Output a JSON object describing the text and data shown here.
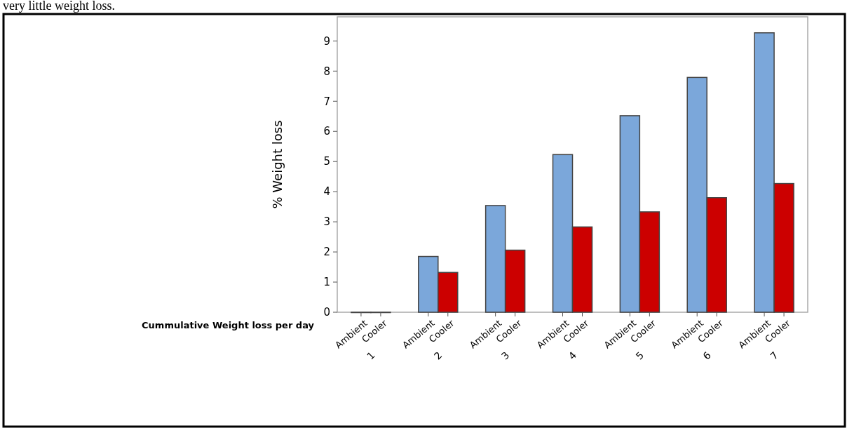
{
  "chart_data": {
    "type": "bar",
    "annotations": [
      "very little weight loss."
    ],
    "xlabel": "Cummulative Weight loss per day",
    "ylabel": "% Weight loss",
    "categories": [
      "1",
      "2",
      "3",
      "4",
      "5",
      "6",
      "7"
    ],
    "series": [
      {
        "name": "Ambient",
        "color": "#7ba7da",
        "values": [
          0,
          1.85,
          3.54,
          5.23,
          6.52,
          7.79,
          9.27
        ]
      },
      {
        "name": "Cooler",
        "color": "#cc0000",
        "values": [
          0,
          1.32,
          2.06,
          2.83,
          3.33,
          3.8,
          4.27
        ]
      }
    ],
    "ylim": [
      0,
      9.8
    ],
    "yticks": [
      0,
      1,
      2,
      3,
      4,
      5,
      6,
      7,
      8,
      9
    ],
    "grid": false
  }
}
